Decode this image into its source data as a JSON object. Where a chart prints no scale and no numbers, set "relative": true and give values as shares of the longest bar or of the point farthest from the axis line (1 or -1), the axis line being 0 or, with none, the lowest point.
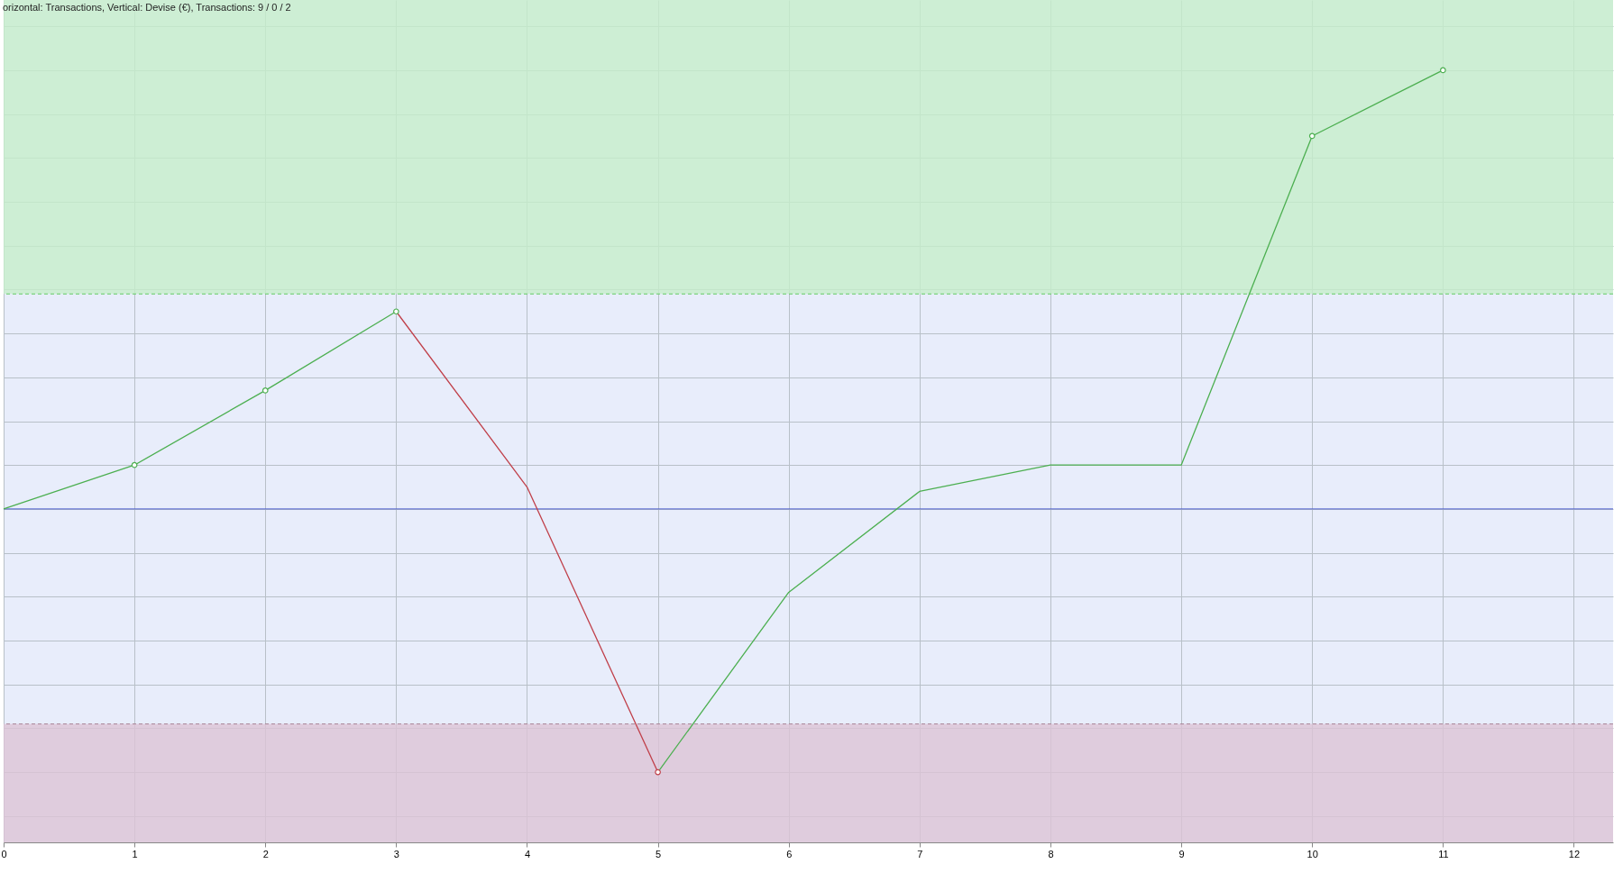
{
  "chart_data": {
    "type": "line",
    "relative": true,
    "title": "orizontal: Transactions, Vertical: Devise (€), Transactions: 9 / 0 / 2",
    "x": [
      0,
      1,
      2,
      3,
      4,
      5,
      6,
      7,
      8,
      9,
      10,
      11
    ],
    "xlim": [
      0,
      12.3
    ],
    "xticks": [
      0,
      1,
      2,
      3,
      4,
      5,
      6,
      7,
      8,
      9,
      10,
      11,
      12
    ],
    "series": [
      {
        "color": "#4caf50",
        "values": [
          0,
          0.1,
          0.27,
          0.45,
          null,
          -0.6,
          -0.19,
          0.04,
          0.1,
          0.1,
          0.85,
          1.0
        ]
      },
      {
        "color": "#c0404a",
        "values": [
          null,
          null,
          null,
          0.45,
          0.05,
          -0.6,
          null,
          null,
          null,
          null,
          null,
          null
        ]
      },
      {
        "type": "scatter",
        "marker": "circle",
        "color": "#4caf50",
        "values": [
          null,
          0.1,
          0.27,
          0.45,
          null,
          null,
          null,
          null,
          null,
          null,
          0.85,
          1.0
        ]
      },
      {
        "type": "scatter",
        "marker": "circle",
        "color": "#c0404a",
        "values": [
          null,
          null,
          null,
          null,
          null,
          -0.6,
          null,
          null,
          null,
          null,
          null,
          null
        ]
      }
    ],
    "bands": [
      {
        "axis": "y",
        "from": 0.49,
        "to": 1.16,
        "color": "#c6eecb"
      },
      {
        "axis": "y",
        "from": -0.76,
        "to": -0.49,
        "color": "#dcc3d6"
      }
    ],
    "ref_lines": [
      {
        "axis": "y",
        "value": 0,
        "color": "#4a5ccc",
        "line_style": "solid"
      },
      {
        "axis": "y",
        "value": 0.49,
        "color": "#66cc66",
        "line_style": "dashed"
      },
      {
        "axis": "y",
        "value": -0.49,
        "color": "#aa8899",
        "line_style": "dashed"
      }
    ],
    "grid": true
  }
}
